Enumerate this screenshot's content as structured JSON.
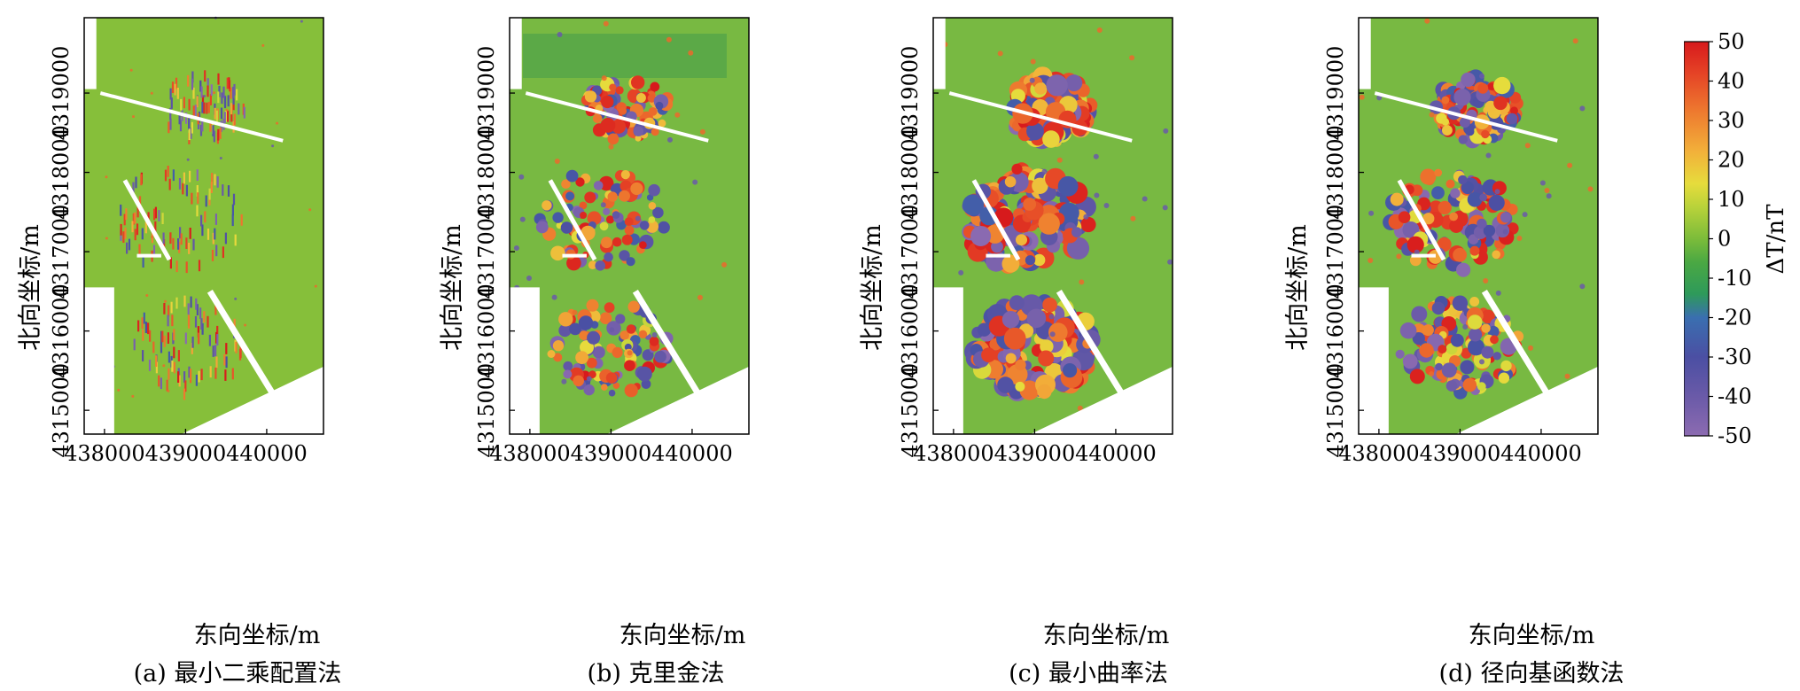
{
  "chart_data": [
    {
      "type": "heatmap",
      "title": "",
      "caption": "(a) 最小二乘配置法",
      "xlabel": "东向坐标/m",
      "ylabel": "北向坐标/m",
      "x_ticks": [
        438000,
        439000,
        440000
      ],
      "y_ticks": [
        4315000,
        4316000,
        4317000,
        4318000,
        4319000
      ],
      "xlim": [
        437750,
        440700
      ],
      "ylim": [
        4314700,
        4319950
      ],
      "style": "striped"
    },
    {
      "type": "heatmap",
      "title": "",
      "caption": "(b) 克里金法",
      "xlabel": "东向坐标/m",
      "ylabel": "北向坐标/m",
      "x_ticks": [
        438000,
        439000,
        440000
      ],
      "y_ticks": [
        4315000,
        4316000,
        4317000,
        4318000,
        4319000
      ],
      "xlim": [
        437750,
        440700
      ],
      "ylim": [
        4314700,
        4319950
      ],
      "style": "patchy"
    },
    {
      "type": "heatmap",
      "title": "",
      "caption": "(c) 最小曲率法",
      "xlabel": "东向坐标/m",
      "ylabel": "北向坐标/m",
      "x_ticks": [
        438000,
        439000,
        440000
      ],
      "y_ticks": [
        4315000,
        4316000,
        4317000,
        4318000,
        4319000
      ],
      "xlim": [
        437750,
        440700
      ],
      "ylim": [
        4314700,
        4319950
      ],
      "style": "strong"
    },
    {
      "type": "heatmap",
      "title": "",
      "caption": "(d) 径向基函数法",
      "xlabel": "东向坐标/m",
      "ylabel": "北向坐标/m",
      "x_ticks": [
        438000,
        439000,
        440000
      ],
      "y_ticks": [
        4315000,
        4316000,
        4317000,
        4318000,
        4319000
      ],
      "xlim": [
        437750,
        440700
      ],
      "ylim": [
        4314700,
        4319950
      ],
      "style": "moderate"
    }
  ],
  "colorbar": {
    "label": "ΔT/nT",
    "min": -50,
    "max": 50,
    "ticks": [
      -50,
      -40,
      -30,
      -20,
      -10,
      0,
      10,
      20,
      30,
      40,
      50
    ],
    "stops": [
      {
        "v": -50,
        "c": "#8c6bb1"
      },
      {
        "v": -40,
        "c": "#6a5aa8"
      },
      {
        "v": -30,
        "c": "#4b4fa3"
      },
      {
        "v": -20,
        "c": "#3a6fb0"
      },
      {
        "v": -14,
        "c": "#2e9a5a"
      },
      {
        "v": -6,
        "c": "#4aa843"
      },
      {
        "v": 0,
        "c": "#7cbc3a"
      },
      {
        "v": 8,
        "c": "#b8d23a"
      },
      {
        "v": 14,
        "c": "#e6dc3c"
      },
      {
        "v": 22,
        "c": "#f2b13a"
      },
      {
        "v": 32,
        "c": "#ee7b2f"
      },
      {
        "v": 42,
        "c": "#e54326"
      },
      {
        "v": 50,
        "c": "#d7191c"
      }
    ]
  }
}
